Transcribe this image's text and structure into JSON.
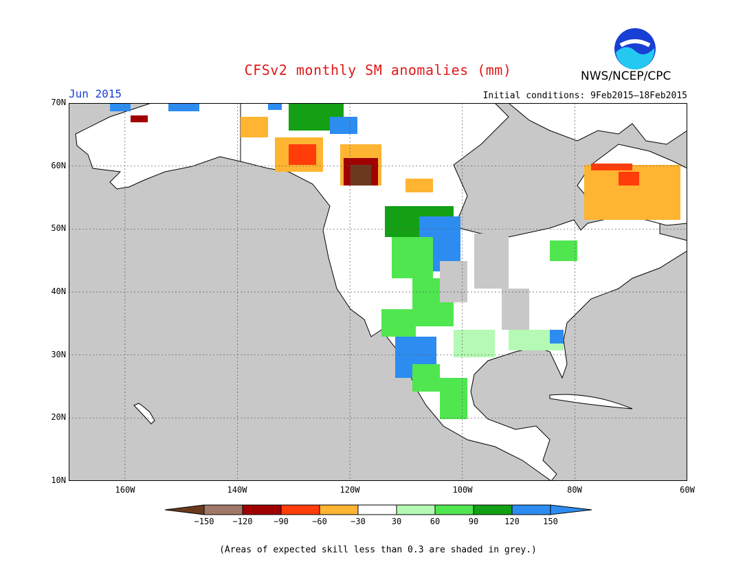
{
  "header": {
    "title": "CFSv2 monthly SM anomalies (mm)",
    "org": "NWS/NCEP/CPC",
    "period": "Jun 2015",
    "initial_conditions": "Initial conditions: 9Feb2015–18Feb2015",
    "logo_text": "NOAA"
  },
  "map": {
    "lat_labels": [
      "70N",
      "60N",
      "50N",
      "40N",
      "30N",
      "20N",
      "10N"
    ],
    "lon_labels": [
      "160W",
      "140W",
      "120W",
      "100W",
      "80W",
      "60W"
    ],
    "land_color": "#ffffff",
    "masked_color": "#c8c8c8"
  },
  "legend": {
    "tick_labels": [
      "−150",
      "−120",
      "−90",
      "−60",
      "−30",
      "30",
      "60",
      "90",
      "120",
      "150"
    ],
    "colors": [
      "#6b3a1e",
      "#a07868",
      "#a00000",
      "#ff3c0a",
      "#ffb432",
      "#ffffff",
      "#b4fab4",
      "#50e650",
      "#14a014",
      "#2d8cf0",
      "#2d8cf0"
    ]
  },
  "note": "(Areas of expected skill less than 0.3 are shaded in grey.)"
}
